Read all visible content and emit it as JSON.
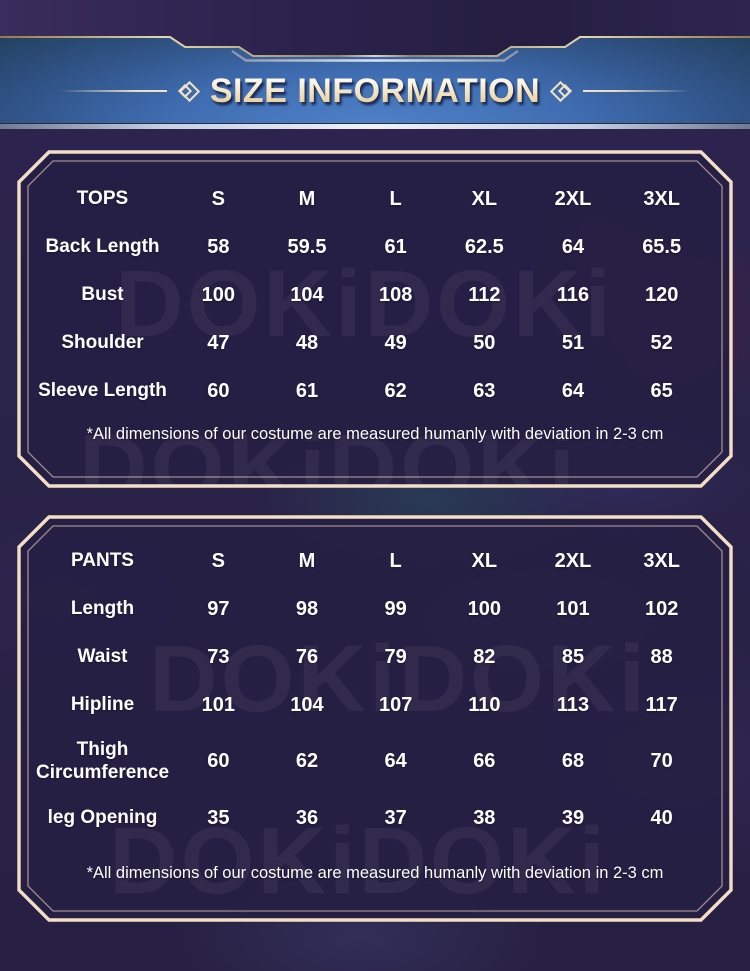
{
  "header": {
    "title": "SIZE INFORMATION"
  },
  "watermark": "DOKiDOKi",
  "chart_data": [
    {
      "type": "table",
      "name": "tops-size-table",
      "columns": [
        "TOPS",
        "S",
        "M",
        "L",
        "XL",
        "2XL",
        "3XL"
      ],
      "rows": [
        {
          "label": "Back Length",
          "values": [
            "58",
            "59.5",
            "61",
            "62.5",
            "64",
            "65.5"
          ]
        },
        {
          "label": "Bust",
          "values": [
            "100",
            "104",
            "108",
            "112",
            "116",
            "120"
          ]
        },
        {
          "label": "Shoulder",
          "values": [
            "47",
            "48",
            "49",
            "50",
            "51",
            "52"
          ]
        },
        {
          "label": "Sleeve Length",
          "values": [
            "60",
            "61",
            "62",
            "63",
            "64",
            "65"
          ]
        }
      ],
      "note": "*All dimensions of our costume are measured humanly with deviation in 2-3 cm"
    },
    {
      "type": "table",
      "name": "pants-size-table",
      "columns": [
        "PANTS",
        "S",
        "M",
        "L",
        "XL",
        "2XL",
        "3XL"
      ],
      "rows": [
        {
          "label": "Length",
          "values": [
            "97",
            "98",
            "99",
            "100",
            "101",
            "102"
          ]
        },
        {
          "label": "Waist",
          "values": [
            "73",
            "76",
            "79",
            "82",
            "85",
            "88"
          ]
        },
        {
          "label": "Hipline",
          "values": [
            "101",
            "104",
            "107",
            "110",
            "113",
            "117"
          ]
        },
        {
          "label": "Thigh Circumference",
          "values": [
            "60",
            "62",
            "64",
            "66",
            "68",
            "70"
          ]
        },
        {
          "label": "leg Opening",
          "values": [
            "35",
            "36",
            "37",
            "38",
            "39",
            "40"
          ]
        }
      ],
      "note": "*All dimensions of our costume are measured humanly with deviation in 2-3 cm"
    }
  ],
  "colors": {
    "panel_border": "#f4dfc6",
    "panel_fill": "#262045",
    "banner_blue": "#3f6cb0",
    "top_band_navy": "#2e2550",
    "title_gold": "#e5c490",
    "table_text": "#ffffff"
  }
}
